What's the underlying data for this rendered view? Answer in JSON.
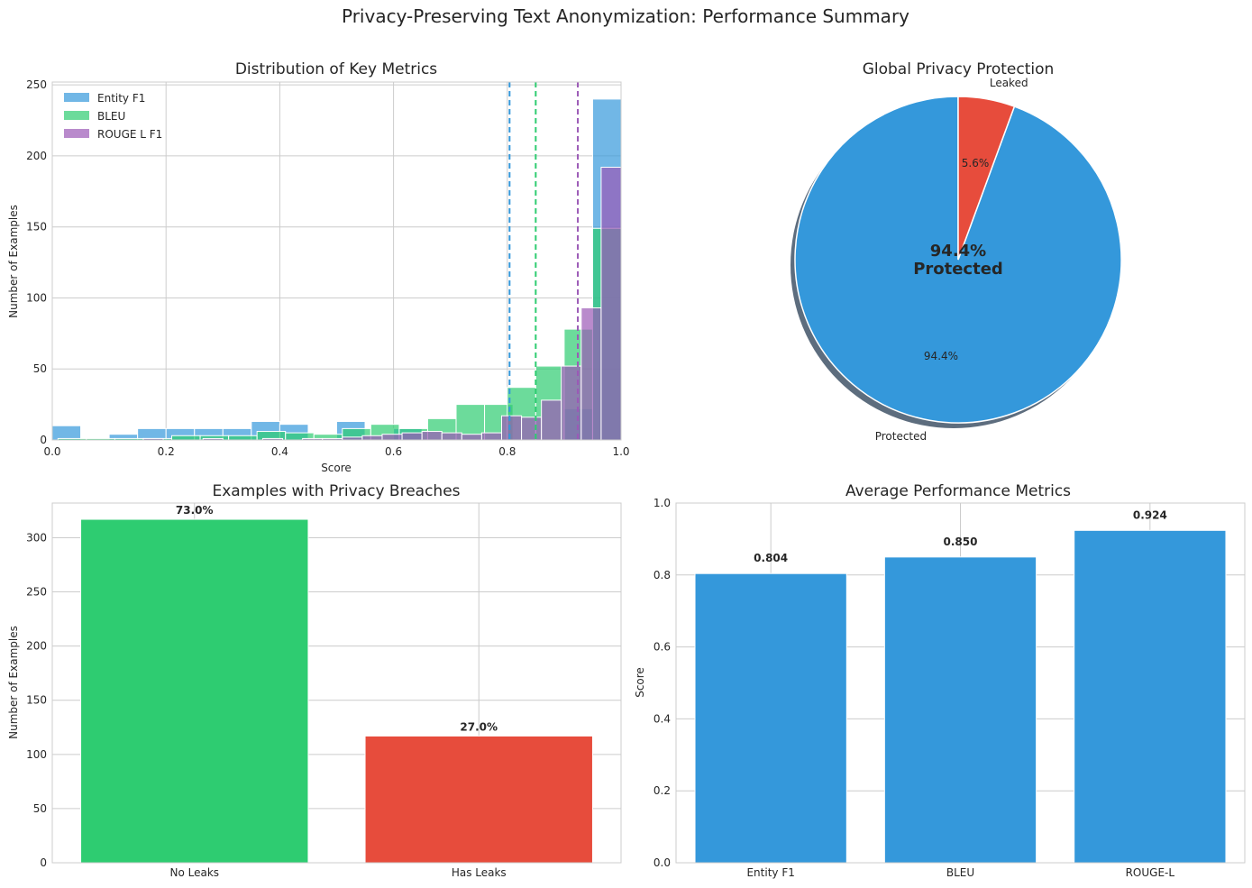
{
  "figure": {
    "suptitle": "Privacy-Preserving Text Anonymization: Performance Summary"
  },
  "colors": {
    "entity_f1": "#3498db",
    "bleu": "#2ecc71",
    "rouge": "#9b59b6",
    "protected": "#3498db",
    "leaked": "#e74c3c",
    "no_leaks": "#2ecc71",
    "has_leaks": "#e74c3c",
    "metric_bar": "#3498db"
  },
  "chart_data": [
    {
      "id": "hist",
      "type": "histogram",
      "title": "Distribution of Key Metrics",
      "xlabel": "Score",
      "ylabel": "Number of Examples",
      "xlim": [
        0,
        1
      ],
      "ylim": [
        0,
        252
      ],
      "xticks": [
        "0.0",
        "0.2",
        "0.4",
        "0.6",
        "0.8",
        "1.0"
      ],
      "yticks": [
        "0",
        "50",
        "100",
        "150",
        "200",
        "250"
      ],
      "legend_position": "top-left",
      "series": [
        {
          "name": "Entity F1",
          "color_key": "entity_f1",
          "mean": 0.804,
          "bin_width": 0.05,
          "bins": [
            0,
            0.05,
            0.1,
            0.15,
            0.2,
            0.25,
            0.3,
            0.35,
            0.4,
            0.45,
            0.5,
            0.55,
            0.6,
            0.65,
            0.7,
            0.75,
            0.8,
            0.85,
            0.9,
            0.95
          ],
          "counts": [
            10,
            0,
            4,
            8,
            8,
            8,
            8,
            13,
            11,
            0,
            13,
            0,
            8,
            0,
            0,
            0,
            0,
            0,
            22,
            240
          ]
        },
        {
          "name": "BLEU",
          "color_key": "bleu",
          "mean": 0.85,
          "bin_width": 0.05,
          "bins": [
            0.01,
            0.06,
            0.11,
            0.16,
            0.21,
            0.26,
            0.31,
            0.36,
            0.41,
            0.46,
            0.51,
            0.56,
            0.61,
            0.66,
            0.71,
            0.76,
            0.8,
            0.85,
            0.9,
            0.95
          ],
          "counts": [
            1,
            1,
            1,
            1,
            3,
            3,
            3,
            6,
            5,
            4,
            8,
            11,
            8,
            15,
            25,
            25,
            37,
            52,
            78,
            149
          ]
        },
        {
          "name": "ROUGE L F1",
          "color_key": "rouge",
          "mean": 0.924,
          "bin_width": 0.035,
          "bins": [
            0.125,
            0.16,
            0.195,
            0.23,
            0.265,
            0.3,
            0.335,
            0.37,
            0.405,
            0.44,
            0.475,
            0.51,
            0.545,
            0.58,
            0.615,
            0.65,
            0.685,
            0.72,
            0.755,
            0.79,
            0.825,
            0.86,
            0.895,
            0.93,
            0.965
          ],
          "counts": [
            0,
            1,
            0,
            0,
            1,
            0,
            0,
            1,
            0,
            1,
            1,
            2,
            3,
            4,
            5,
            6,
            5,
            4,
            5,
            17,
            16,
            28,
            52,
            93,
            192
          ]
        }
      ]
    },
    {
      "id": "pie",
      "type": "pie",
      "title": "Global Privacy Protection",
      "labels": [
        "Protected",
        "Leaked"
      ],
      "values": [
        94.4,
        5.6
      ],
      "pct_labels": [
        "94.4%",
        "5.6%"
      ],
      "color_keys": [
        "protected",
        "leaked"
      ],
      "center_value": "94.4%",
      "center_caption": "Protected"
    },
    {
      "id": "breach",
      "type": "bar",
      "title": "Examples with Privacy Breaches",
      "ylabel": "Number of Examples",
      "ylim": [
        0,
        332
      ],
      "yticks": [
        "0",
        "50",
        "100",
        "150",
        "200",
        "250",
        "300"
      ],
      "categories": [
        "No Leaks",
        "Has Leaks"
      ],
      "values": [
        317,
        117
      ],
      "value_labels": [
        "73.0%",
        "27.0%"
      ],
      "color_keys": [
        "no_leaks",
        "has_leaks"
      ]
    },
    {
      "id": "metrics",
      "type": "bar",
      "title": "Average Performance Metrics",
      "ylabel": "Score",
      "ylim": [
        0,
        1
      ],
      "yticks": [
        "0.0",
        "0.2",
        "0.4",
        "0.6",
        "0.8",
        "1.0"
      ],
      "categories": [
        "Entity F1",
        "BLEU",
        "ROUGE-L"
      ],
      "values": [
        0.804,
        0.85,
        0.924
      ],
      "value_labels": [
        "0.804",
        "0.850",
        "0.924"
      ],
      "color_key": "metric_bar"
    }
  ]
}
